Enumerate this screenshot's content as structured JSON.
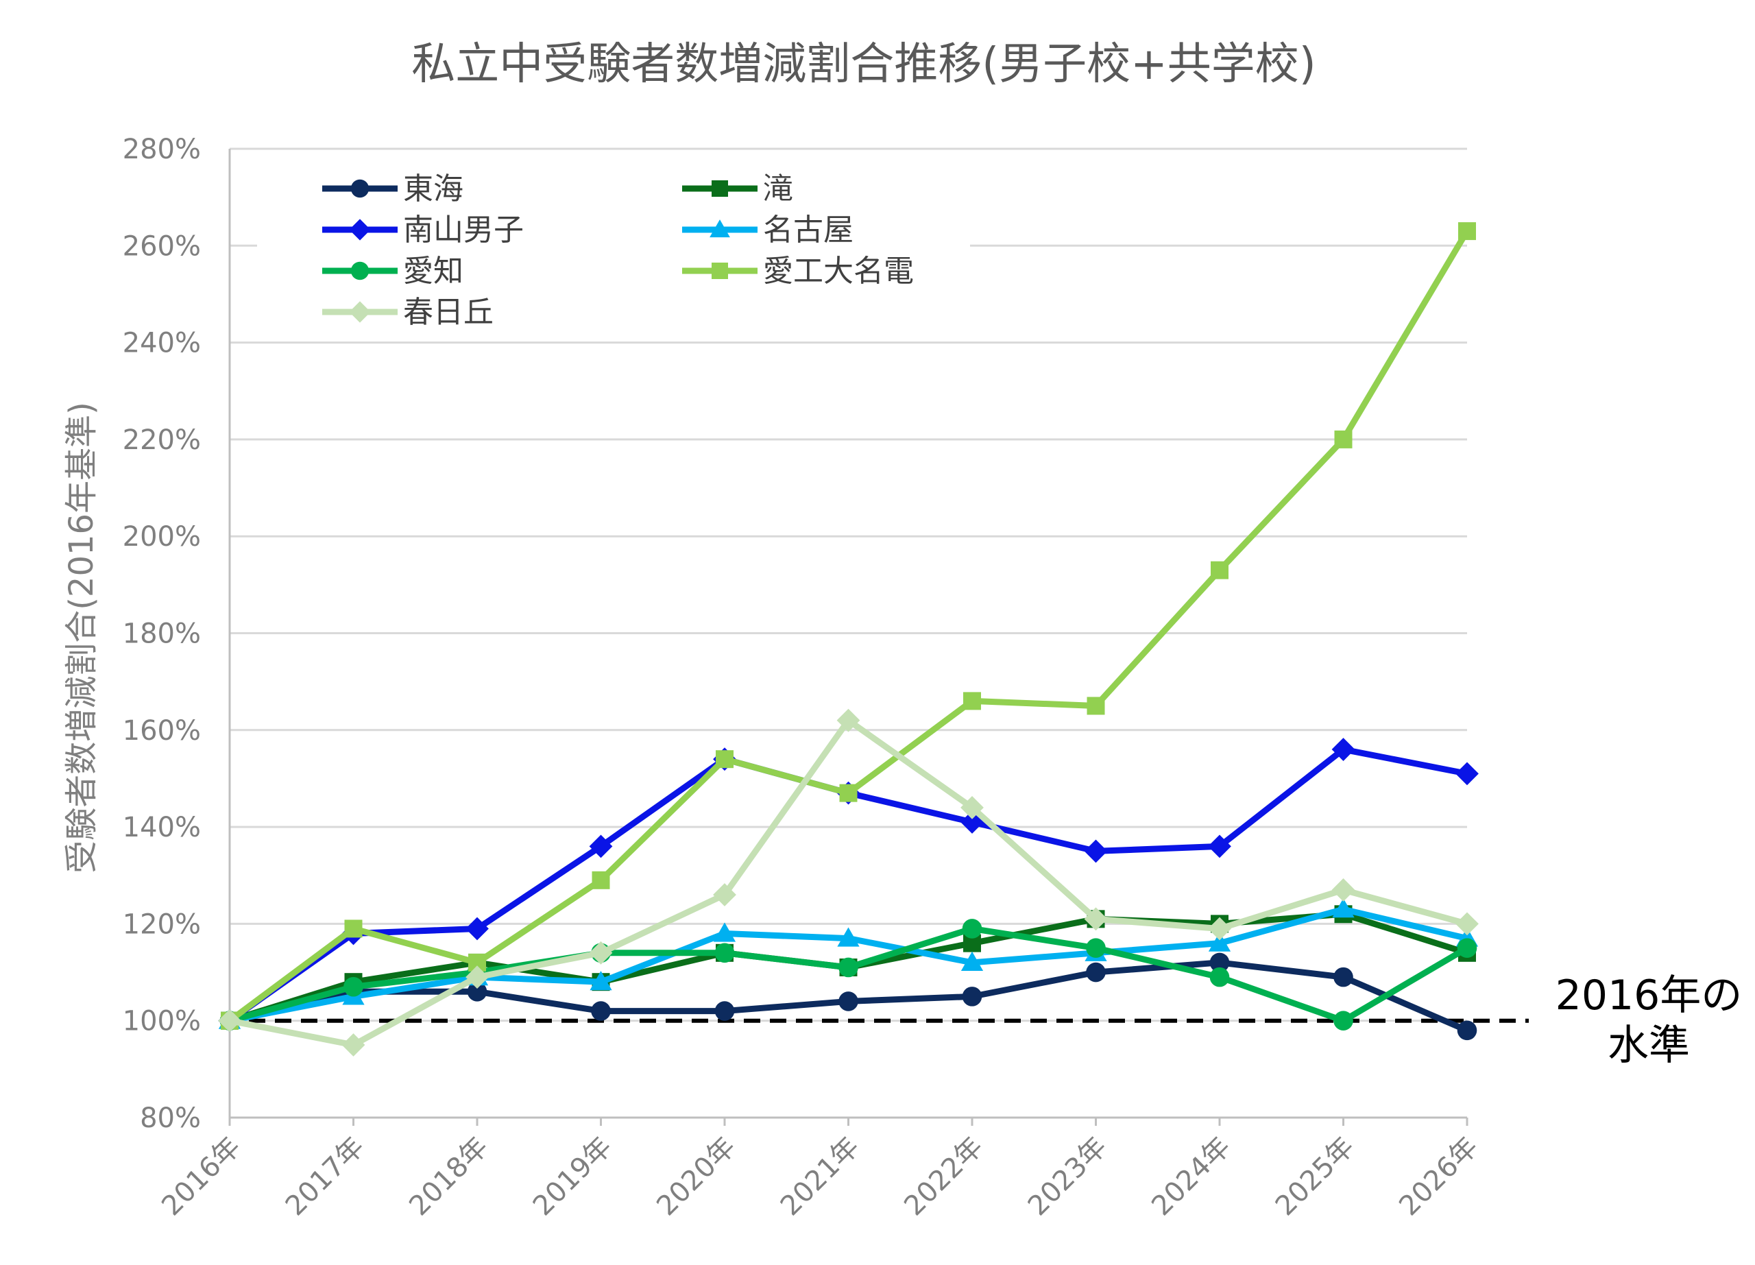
{
  "chart_data": {
    "type": "line",
    "title": "私立中受験者数増減割合推移(男子校+共学校)",
    "xlabel": "",
    "ylabel": "受験者数増減割合(2016年基準)",
    "ylim": [
      80,
      280
    ],
    "yticks": [
      "80%",
      "100%",
      "120%",
      "140%",
      "160%",
      "180%",
      "200%",
      "220%",
      "240%",
      "260%",
      "280%"
    ],
    "ytick_values": [
      80,
      100,
      120,
      140,
      160,
      180,
      200,
      220,
      240,
      260,
      280
    ],
    "categories": [
      "2016年",
      "2017年",
      "2018年",
      "2019年",
      "2020年",
      "2021年",
      "2022年",
      "2023年",
      "2024年",
      "2025年",
      "2026年"
    ],
    "grid": true,
    "legend_position": "top-left",
    "baseline": {
      "value": 100,
      "label_line1": "2016年の",
      "label_line2": "水準",
      "color": "#000000"
    },
    "series": [
      {
        "name": "東海",
        "color": "#0d2b5e",
        "marker": "circle",
        "values": [
          100,
          106,
          106,
          102,
          102,
          104,
          105,
          110,
          112,
          109,
          98
        ]
      },
      {
        "name": "滝",
        "color": "#0a6e1a",
        "marker": "square",
        "values": [
          100,
          108,
          112,
          108,
          114,
          111,
          116,
          121,
          120,
          122,
          114
        ]
      },
      {
        "name": "南山男子",
        "color": "#0a14e6",
        "marker": "diamond",
        "values": [
          100,
          118,
          119,
          136,
          154,
          147,
          141,
          135,
          136,
          156,
          151
        ]
      },
      {
        "name": "名古屋",
        "color": "#00b0f0",
        "marker": "triangle",
        "values": [
          100,
          105,
          109,
          108,
          118,
          117,
          112,
          114,
          116,
          123,
          117
        ]
      },
      {
        "name": "愛知",
        "color": "#00b050",
        "marker": "circle",
        "values": [
          100,
          107,
          110,
          114,
          114,
          111,
          119,
          115,
          109,
          100,
          115
        ]
      },
      {
        "name": "愛工大名電",
        "color": "#92d050",
        "marker": "square",
        "values": [
          100,
          119,
          112,
          129,
          154,
          147,
          166,
          165,
          193,
          220,
          263
        ]
      },
      {
        "name": "春日丘",
        "color": "#c5e0b4",
        "marker": "diamond",
        "values": [
          100,
          95,
          109,
          114,
          126,
          162,
          144,
          121,
          119,
          127,
          120
        ]
      }
    ]
  }
}
